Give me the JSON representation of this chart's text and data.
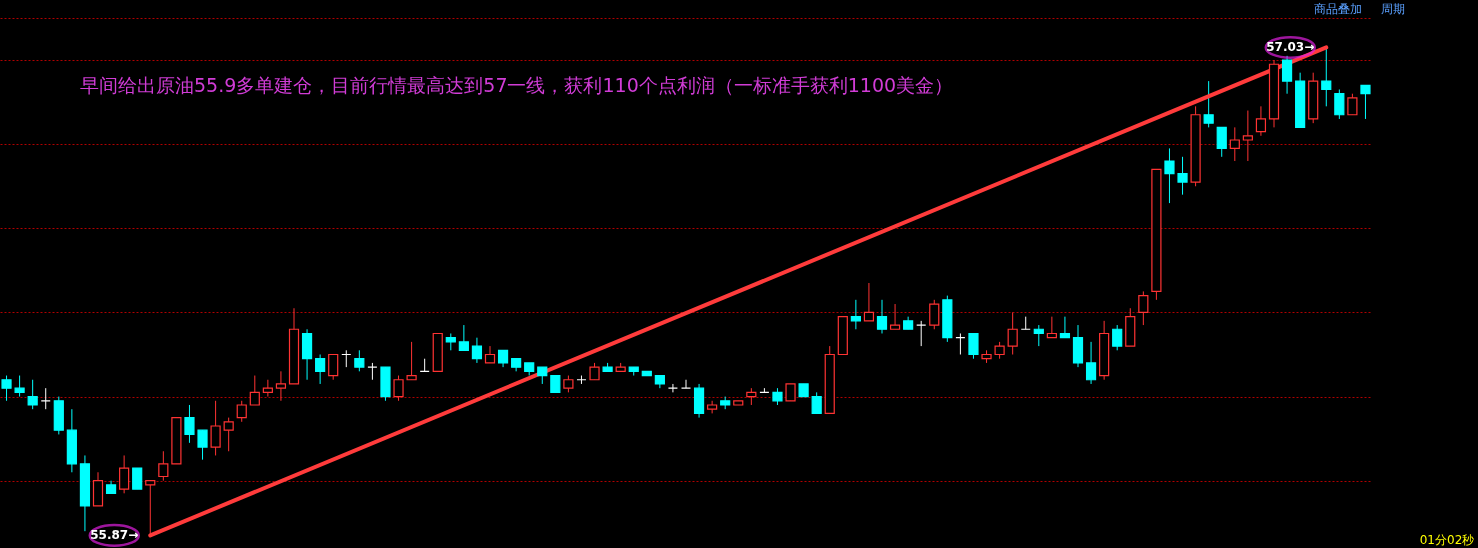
{
  "chart_data": {
    "type": "candlestick",
    "categories": [
      null,
      null,
      null,
      null,
      null,
      null,
      null,
      null,
      null,
      null,
      null,
      null,
      null,
      null,
      null,
      null,
      null,
      null,
      null,
      null,
      null,
      null,
      null,
      null,
      null,
      null,
      null,
      null,
      null,
      null,
      null,
      null,
      null,
      null,
      null,
      null,
      null,
      null,
      null,
      null,
      null,
      null,
      null,
      null,
      null,
      null,
      null,
      null,
      null,
      null,
      null,
      null,
      null,
      null,
      null,
      null,
      null,
      null,
      null,
      null,
      null,
      null,
      null,
      null,
      null,
      null,
      null,
      null,
      null,
      null,
      null,
      null,
      null,
      null,
      null,
      null,
      null,
      null,
      null,
      null,
      null,
      null,
      null,
      null,
      null,
      null,
      null,
      null,
      null,
      null,
      null,
      null,
      null,
      null,
      null,
      null,
      null,
      null,
      null,
      null,
      null,
      null,
      null,
      null,
      null
    ],
    "ohlc": [
      [
        56.24,
        56.25,
        56.19,
        56.22
      ],
      [
        56.22,
        56.25,
        56.2,
        56.21
      ],
      [
        56.2,
        56.24,
        56.17,
        56.18
      ],
      [
        56.19,
        56.22,
        56.17,
        56.19
      ],
      [
        56.19,
        56.2,
        56.11,
        56.12
      ],
      [
        56.12,
        56.17,
        56.02,
        56.04
      ],
      [
        56.04,
        56.06,
        55.88,
        55.94
      ],
      [
        55.94,
        56.02,
        55.94,
        56.0
      ],
      [
        55.99,
        56.0,
        55.97,
        55.97
      ],
      [
        55.98,
        56.06,
        55.97,
        56.03
      ],
      [
        56.03,
        56.03,
        55.98,
        55.98
      ],
      [
        55.99,
        56.0,
        55.87,
        56.0
      ],
      [
        56.01,
        56.07,
        56.0,
        56.04
      ],
      [
        56.04,
        56.15,
        56.04,
        56.15
      ],
      [
        56.15,
        56.18,
        56.09,
        56.11
      ],
      [
        56.12,
        56.12,
        56.05,
        56.08
      ],
      [
        56.08,
        56.19,
        56.06,
        56.13
      ],
      [
        56.12,
        56.15,
        56.07,
        56.14
      ],
      [
        56.15,
        56.19,
        56.14,
        56.18
      ],
      [
        56.18,
        56.25,
        56.18,
        56.21
      ],
      [
        56.21,
        56.24,
        56.2,
        56.22
      ],
      [
        56.22,
        56.26,
        56.19,
        56.23
      ],
      [
        56.23,
        56.41,
        56.23,
        56.36
      ],
      [
        56.35,
        56.36,
        56.24,
        56.29
      ],
      [
        56.29,
        56.3,
        56.23,
        56.26
      ],
      [
        56.25,
        56.3,
        56.24,
        56.3
      ],
      [
        56.3,
        56.31,
        56.27,
        56.3
      ],
      [
        56.29,
        56.31,
        56.26,
        56.27
      ],
      [
        56.27,
        56.28,
        56.24,
        56.27
      ],
      [
        56.27,
        56.27,
        56.19,
        56.2
      ],
      [
        56.2,
        56.25,
        56.19,
        56.24
      ],
      [
        56.24,
        56.33,
        56.24,
        56.25
      ],
      [
        56.26,
        56.29,
        56.26,
        56.26
      ],
      [
        56.26,
        56.35,
        56.26,
        56.35
      ],
      [
        56.34,
        56.35,
        56.31,
        56.33
      ],
      [
        56.33,
        56.37,
        56.31,
        56.31
      ],
      [
        56.32,
        56.34,
        56.28,
        56.29
      ],
      [
        56.28,
        56.32,
        56.28,
        56.3
      ],
      [
        56.31,
        56.31,
        56.27,
        56.28
      ],
      [
        56.29,
        56.29,
        56.26,
        56.27
      ],
      [
        56.28,
        56.28,
        56.25,
        56.26
      ],
      [
        56.27,
        56.27,
        56.23,
        56.25
      ],
      [
        56.25,
        56.25,
        56.21,
        56.21
      ],
      [
        56.22,
        56.25,
        56.21,
        56.24
      ],
      [
        56.24,
        56.25,
        56.23,
        56.24
      ],
      [
        56.24,
        56.28,
        56.24,
        56.27
      ],
      [
        56.27,
        56.28,
        56.26,
        56.26
      ],
      [
        56.26,
        56.28,
        56.26,
        56.27
      ],
      [
        56.27,
        56.27,
        56.25,
        56.26
      ],
      [
        56.26,
        56.26,
        56.25,
        56.25
      ],
      [
        56.25,
        56.25,
        56.22,
        56.23
      ],
      [
        56.22,
        56.23,
        56.21,
        56.22
      ],
      [
        56.22,
        56.24,
        56.22,
        56.22
      ],
      [
        56.22,
        56.23,
        56.15,
        56.16
      ],
      [
        56.17,
        56.19,
        56.16,
        56.18
      ],
      [
        56.19,
        56.2,
        56.17,
        56.18
      ],
      [
        56.18,
        56.19,
        56.18,
        56.19
      ],
      [
        56.2,
        56.22,
        56.18,
        56.21
      ],
      [
        56.21,
        56.22,
        56.21,
        56.21
      ],
      [
        56.21,
        56.22,
        56.18,
        56.19
      ],
      [
        56.19,
        56.23,
        56.19,
        56.23
      ],
      [
        56.23,
        56.23,
        56.2,
        56.2
      ],
      [
        56.2,
        56.21,
        56.16,
        56.16
      ],
      [
        56.16,
        56.32,
        56.16,
        56.3
      ],
      [
        56.3,
        56.39,
        56.3,
        56.39
      ],
      [
        56.39,
        56.43,
        56.36,
        56.38
      ],
      [
        56.38,
        56.47,
        56.38,
        56.4
      ],
      [
        56.39,
        56.43,
        56.35,
        56.36
      ],
      [
        56.36,
        56.42,
        56.36,
        56.37
      ],
      [
        56.38,
        56.39,
        56.36,
        56.36
      ],
      [
        56.37,
        56.38,
        56.32,
        56.37
      ],
      [
        56.37,
        56.43,
        56.36,
        56.42
      ],
      [
        56.43,
        56.44,
        56.33,
        56.34
      ],
      [
        56.34,
        56.35,
        56.3,
        56.34
      ],
      [
        56.35,
        56.35,
        56.29,
        56.3
      ],
      [
        56.29,
        56.31,
        56.28,
        56.3
      ],
      [
        56.3,
        56.33,
        56.29,
        56.32
      ],
      [
        56.32,
        56.4,
        56.3,
        56.36
      ],
      [
        56.36,
        56.39,
        56.36,
        56.36
      ],
      [
        56.36,
        56.37,
        56.32,
        56.35
      ],
      [
        56.34,
        56.39,
        56.34,
        56.35
      ],
      [
        56.35,
        56.39,
        56.34,
        56.34
      ],
      [
        56.34,
        56.37,
        56.27,
        56.28
      ],
      [
        56.28,
        56.33,
        56.23,
        56.24
      ],
      [
        56.25,
        56.38,
        56.24,
        56.35
      ],
      [
        56.36,
        56.37,
        56.31,
        56.32
      ],
      [
        56.32,
        56.41,
        56.32,
        56.39
      ],
      [
        56.4,
        56.45,
        56.37,
        56.44
      ],
      [
        56.45,
        56.74,
        56.43,
        56.74
      ],
      [
        56.76,
        56.79,
        56.66,
        56.73
      ],
      [
        56.73,
        56.77,
        56.68,
        56.71
      ],
      [
        56.71,
        56.89,
        56.7,
        56.87
      ],
      [
        56.87,
        56.95,
        56.84,
        56.85
      ],
      [
        56.84,
        56.84,
        56.77,
        56.79
      ],
      [
        56.79,
        56.84,
        56.76,
        56.81
      ],
      [
        56.81,
        56.88,
        56.76,
        56.82
      ],
      [
        56.83,
        56.89,
        56.82,
        56.86
      ],
      [
        56.86,
        57.0,
        56.84,
        56.99
      ],
      [
        57.0,
        57.01,
        56.92,
        56.95
      ],
      [
        56.95,
        56.97,
        56.84,
        56.84
      ],
      [
        56.86,
        56.97,
        56.85,
        56.95
      ],
      [
        56.95,
        57.03,
        56.89,
        56.93
      ],
      [
        56.92,
        56.93,
        56.86,
        56.87
      ],
      [
        56.87,
        56.92,
        56.87,
        56.91
      ],
      [
        56.94,
        56.94,
        56.86,
        56.92
      ]
    ],
    "colors": [
      "#00ffff",
      "#00ffff",
      "#00ffff",
      "#ffffff",
      "#00ffff",
      "#00ffff",
      "#00ffff",
      "#ff3333",
      "#00ffff",
      "#ff3333",
      "#00ffff",
      "#ff3333",
      "#ff3333",
      "#ff3333",
      "#00ffff",
      "#00ffff",
      "#ff3333",
      "#ff3333",
      "#ff3333",
      "#ff3333",
      "#ff3333",
      "#ff3333",
      "#ff3333",
      "#00ffff",
      "#00ffff",
      "#ff3333",
      "#ffffff",
      "#00ffff",
      "#ffffff",
      "#00ffff",
      "#ff3333",
      "#ff3333",
      "#ffffff",
      "#ff3333",
      "#00ffff",
      "#00ffff",
      "#00ffff",
      "#ff3333",
      "#00ffff",
      "#00ffff",
      "#00ffff",
      "#00ffff",
      "#00ffff",
      "#ff3333",
      "#ffffff",
      "#ff3333",
      "#00ffff",
      "#ff3333",
      "#00ffff",
      "#00ffff",
      "#00ffff",
      "#ffffff",
      "#ffffff",
      "#00ffff",
      "#ff3333",
      "#00ffff",
      "#ff3333",
      "#ff3333",
      "#ffffff",
      "#00ffff",
      "#ff3333",
      "#00ffff",
      "#00ffff",
      "#ff3333",
      "#ff3333",
      "#00ffff",
      "#ff3333",
      "#00ffff",
      "#ff3333",
      "#00ffff",
      "#ffffff",
      "#ff3333",
      "#00ffff",
      "#ffffff",
      "#00ffff",
      "#ff3333",
      "#ff3333",
      "#ff3333",
      "#ffffff",
      "#00ffff",
      "#ff3333",
      "#00ffff",
      "#00ffff",
      "#00ffff",
      "#ff3333",
      "#00ffff",
      "#ff3333",
      "#ff3333",
      "#ff3333",
      "#00ffff",
      "#00ffff",
      "#ff3333",
      "#00ffff",
      "#00ffff",
      "#ff3333",
      "#ff3333",
      "#ff3333",
      "#ff3333",
      "#00ffff",
      "#00ffff",
      "#ff3333",
      "#00ffff",
      "#00ffff",
      "#ff3333",
      "#00ffff"
    ],
    "ylim": [
      55.84,
      57.1
    ],
    "yticks": [
      {
        "value": 56.0,
        "label": null
      },
      {
        "value": 56.2,
        "label": null
      },
      {
        "value": 56.4,
        "label": null
      },
      {
        "value": 56.6,
        "label": null
      },
      {
        "value": 56.8,
        "label": null
      },
      {
        "value": 57.0,
        "label": null
      },
      {
        "value": 57.1,
        "label": null
      }
    ],
    "grid": "y",
    "annotations": [
      {
        "text": "早间给出原油55.9多单建仓，目前行情最高达到57一线，获利110个点利润（一标准手获利1100美金）"
      },
      "55.87→",
      "57.03→",
      {
        "text": "商品叠加"
      },
      {
        "text": "周期"
      },
      {
        "text": "01分02秒"
      }
    ]
  }
}
